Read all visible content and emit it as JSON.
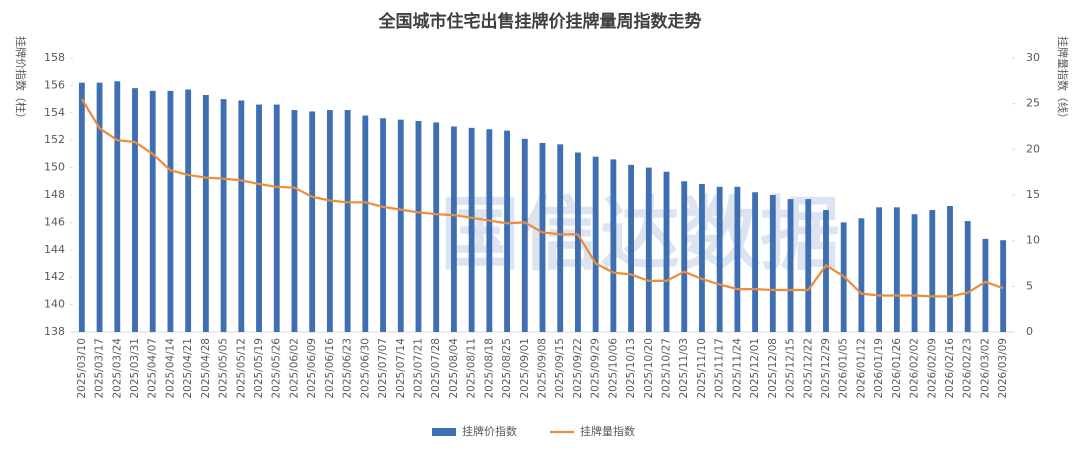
{
  "chart_data": {
    "type": "bar_line",
    "title": "全国城市住宅出售挂牌价挂牌量周指数走势",
    "watermark": "国信达数据",
    "y_label": "挂牌价指数（柱）",
    "y2_label": "挂牌量指数（线）",
    "categories": [
      "2025/03/10",
      "2025/03/17",
      "2025/03/24",
      "2025/03/31",
      "2025/04/07",
      "2025/04/14",
      "2025/04/21",
      "2025/04/28",
      "2025/05/05",
      "2025/05/12",
      "2025/05/19",
      "2025/05/26",
      "2025/06/02",
      "2025/06/09",
      "2025/06/16",
      "2025/06/23",
      "2025/06/30",
      "2025/07/07",
      "2025/07/14",
      "2025/07/21",
      "2025/07/28",
      "2025/08/04",
      "2025/08/11",
      "2025/08/18",
      "2025/08/25",
      "2025/09/01",
      "2025/09/08",
      "2025/09/15",
      "2025/09/22",
      "2025/09/29",
      "2025/10/06",
      "2025/10/13",
      "2025/10/20",
      "2025/10/27",
      "2025/11/03",
      "2025/11/10",
      "2025/11/17",
      "2025/11/24",
      "2025/12/01",
      "2025/12/08",
      "2025/12/15",
      "2025/12/22",
      "2025/12/29",
      "2026/01/05",
      "2026/01/12",
      "2026/01/19",
      "2026/01/26",
      "2026/02/02",
      "2026/02/09",
      "2026/02/16",
      "2026/02/23",
      "2026/03/02",
      "2026/03/09"
    ],
    "series": [
      {
        "name": "挂牌价指数",
        "color": "#3f6fb3",
        "kind": "bar",
        "values": [
          156.2,
          156.2,
          156.3,
          155.8,
          155.6,
          155.6,
          155.7,
          155.3,
          155.0,
          154.9,
          154.6,
          154.6,
          154.2,
          154.1,
          154.2,
          154.2,
          153.8,
          153.6,
          153.5,
          153.4,
          153.3,
          153.0,
          152.9,
          152.8,
          152.7,
          152.1,
          151.8,
          151.7,
          151.1,
          150.8,
          150.6,
          150.2,
          150.0,
          149.7,
          149.0,
          148.8,
          148.6,
          148.6,
          148.2,
          148.0,
          147.7,
          147.7,
          146.9,
          146.0,
          146.3,
          147.1,
          147.1,
          146.6,
          146.9,
          147.2,
          146.1,
          144.8,
          144.7
        ]
      },
      {
        "name": "挂牌量指数",
        "color": "#ed8c3c",
        "kind": "line",
        "axis": "y2",
        "values": [
          25.5,
          22.3,
          21.0,
          20.8,
          19.5,
          17.7,
          17.2,
          16.9,
          16.8,
          16.6,
          16.2,
          15.9,
          15.8,
          14.8,
          14.4,
          14.2,
          14.2,
          13.7,
          13.4,
          13.1,
          12.9,
          12.8,
          12.5,
          12.2,
          11.9,
          12.0,
          10.9,
          10.7,
          10.7,
          7.5,
          6.5,
          6.3,
          5.6,
          5.6,
          6.6,
          5.8,
          5.2,
          4.7,
          4.7,
          4.6,
          4.6,
          4.6,
          7.3,
          6.1,
          4.2,
          4.0,
          4.0,
          4.0,
          3.9,
          3.9,
          4.3,
          5.5,
          4.8
        ]
      }
    ],
    "ylim": [
      138,
      158
    ],
    "yticks": [
      138,
      140,
      142,
      144,
      146,
      148,
      150,
      152,
      154,
      156,
      158
    ],
    "y2lim": [
      0,
      30
    ],
    "y2ticks": [
      0,
      5,
      10,
      15,
      20,
      25,
      30
    ],
    "legend": "bottom"
  }
}
